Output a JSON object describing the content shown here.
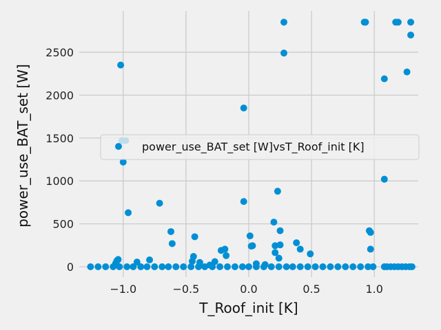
{
  "chart_data": {
    "type": "scatter",
    "title": "",
    "xlabel": "T_Roof_init [K]",
    "ylabel": "power_use_BAT_set [W]",
    "xlim": [
      -1.35,
      1.35
    ],
    "ylim": [
      -120,
      2980
    ],
    "xticks": [
      -1.0,
      -0.5,
      0.0,
      0.5,
      1.0
    ],
    "xtick_labels": [
      "−1.0",
      "−0.5",
      "0.0",
      "0.5",
      "1.0"
    ],
    "yticks": [
      0,
      500,
      1000,
      1500,
      2000,
      2500
    ],
    "ytick_labels": [
      "0",
      "500",
      "1000",
      "1500",
      "2000",
      "2500"
    ],
    "grid": true,
    "legend_position": "center-right",
    "marker_color": "#008fd5",
    "series": [
      {
        "name": "power_use_BAT_set [W]vsT_Roof_init [K]",
        "points": [
          [
            0.28,
            2850
          ],
          [
            0.92,
            2850
          ],
          [
            0.93,
            2850
          ],
          [
            1.17,
            2850
          ],
          [
            1.19,
            2850
          ],
          [
            1.29,
            2850
          ],
          [
            0.28,
            2490
          ],
          [
            1.29,
            2700
          ],
          [
            1.26,
            2270
          ],
          [
            1.08,
            2190
          ],
          [
            -1.02,
            2350
          ],
          [
            -0.04,
            1850
          ],
          [
            -1.01,
            1470
          ],
          [
            -0.98,
            1470
          ],
          [
            -1.0,
            1220
          ],
          [
            1.08,
            1020
          ],
          [
            -0.96,
            630
          ],
          [
            -0.71,
            740
          ],
          [
            -0.04,
            760
          ],
          [
            0.23,
            880
          ],
          [
            -0.62,
            410
          ],
          [
            -0.61,
            270
          ],
          [
            -0.43,
            350
          ],
          [
            0.2,
            520
          ],
          [
            0.25,
            420
          ],
          [
            0.01,
            360
          ],
          [
            0.02,
            240
          ],
          [
            0.03,
            245
          ],
          [
            0.21,
            245
          ],
          [
            0.25,
            255
          ],
          [
            0.21,
            165
          ],
          [
            0.24,
            100
          ],
          [
            0.38,
            280
          ],
          [
            0.41,
            205
          ],
          [
            0.49,
            150
          ],
          [
            0.96,
            420
          ],
          [
            0.97,
            400
          ],
          [
            0.97,
            205
          ],
          [
            -0.22,
            190
          ],
          [
            -0.19,
            205
          ],
          [
            -0.18,
            130
          ],
          [
            -0.44,
            120
          ],
          [
            -0.45,
            65
          ],
          [
            -0.39,
            50
          ],
          [
            -0.27,
            60
          ],
          [
            -0.31,
            20
          ],
          [
            -0.89,
            55
          ],
          [
            -0.79,
            80
          ],
          [
            -1.05,
            70
          ],
          [
            -1.04,
            85
          ],
          [
            -1.06,
            40
          ],
          [
            0.06,
            35
          ],
          [
            0.13,
            25
          ],
          [
            -1.26,
            0
          ],
          [
            -1.2,
            0
          ],
          [
            -1.14,
            0
          ],
          [
            -1.08,
            0
          ],
          [
            -1.03,
            0
          ],
          [
            -0.97,
            0
          ],
          [
            -0.92,
            0
          ],
          [
            -0.86,
            0
          ],
          [
            -0.81,
            0
          ],
          [
            -0.75,
            0
          ],
          [
            -0.69,
            0
          ],
          [
            -0.64,
            0
          ],
          [
            -0.58,
            0
          ],
          [
            -0.52,
            0
          ],
          [
            -0.46,
            0
          ],
          [
            -0.4,
            0
          ],
          [
            -0.35,
            0
          ],
          [
            -0.29,
            0
          ],
          [
            -0.23,
            0
          ],
          [
            -0.17,
            0
          ],
          [
            -0.11,
            0
          ],
          [
            -0.05,
            0
          ],
          [
            0.0,
            0
          ],
          [
            0.06,
            0
          ],
          [
            0.12,
            0
          ],
          [
            0.18,
            0
          ],
          [
            0.24,
            0
          ],
          [
            0.3,
            0
          ],
          [
            0.35,
            0
          ],
          [
            0.41,
            0
          ],
          [
            0.47,
            0
          ],
          [
            0.53,
            0
          ],
          [
            0.59,
            0
          ],
          [
            0.65,
            0
          ],
          [
            0.71,
            0
          ],
          [
            0.77,
            0
          ],
          [
            0.83,
            0
          ],
          [
            0.89,
            0
          ],
          [
            0.95,
            0
          ],
          [
            0.99,
            0
          ],
          [
            1.08,
            0
          ],
          [
            1.1,
            0
          ],
          [
            1.13,
            0
          ],
          [
            1.16,
            0
          ],
          [
            1.19,
            0
          ],
          [
            1.22,
            0
          ],
          [
            1.25,
            0
          ],
          [
            1.28,
            0
          ],
          [
            1.3,
            0
          ]
        ]
      }
    ]
  }
}
